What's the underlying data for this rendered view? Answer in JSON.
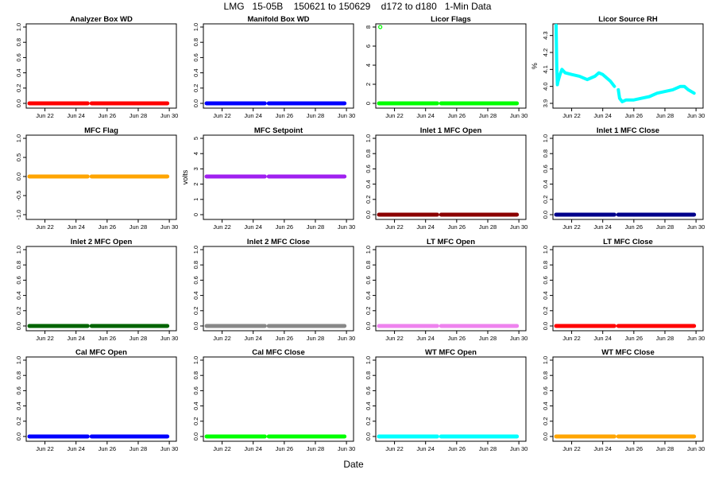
{
  "page": {
    "title": "LMG   15-05B    150621 to 150629    d172 to d180   1-Min Data",
    "xlabel": "Date"
  },
  "chart_data": [
    {
      "type": "scatter",
      "title": "Analyzer Box WD",
      "ylabel": "",
      "ylim": [
        0,
        1
      ],
      "yticks": [
        0,
        0.2,
        0.4,
        0.6,
        0.8,
        1.0
      ],
      "ytick_labels": [
        "0.0",
        "0.2",
        "0.4",
        "0.6",
        "0.8",
        "1.0"
      ],
      "xticks": [
        "Jun 22",
        "Jun 24",
        "Jun 26",
        "Jun 28",
        "Jun 30"
      ],
      "color": "#ff0000",
      "series": [
        {
          "x": [
            "2015-06-21",
            "2015-06-24 18:00"
          ],
          "y": [
            0,
            0
          ]
        },
        {
          "x": [
            "2015-06-25",
            "2015-06-29 21:00"
          ],
          "y": [
            0,
            0
          ]
        }
      ]
    },
    {
      "type": "scatter",
      "title": "Manifold Box WD",
      "ylabel": "",
      "ylim": [
        0,
        1
      ],
      "yticks": [
        0,
        0.2,
        0.4,
        0.6,
        0.8,
        1.0
      ],
      "ytick_labels": [
        "0.0",
        "0.2",
        "0.4",
        "0.6",
        "0.8",
        "1.0"
      ],
      "xticks": [
        "Jun 22",
        "Jun 24",
        "Jun 26",
        "Jun 28",
        "Jun 30"
      ],
      "color": "#0000ff",
      "series": [
        {
          "x": [
            "2015-06-21",
            "2015-06-24 18:00"
          ],
          "y": [
            0,
            0
          ]
        },
        {
          "x": [
            "2015-06-25",
            "2015-06-29 21:00"
          ],
          "y": [
            0,
            0
          ]
        }
      ]
    },
    {
      "type": "scatter",
      "title": "Licor Flags",
      "ylabel": "",
      "ylim": [
        0,
        8
      ],
      "yticks": [
        0,
        2,
        4,
        6,
        8
      ],
      "ytick_labels": [
        "0",
        "2",
        "4",
        "6",
        "8"
      ],
      "xticks": [
        "Jun 22",
        "Jun 24",
        "Jun 26",
        "Jun 28",
        "Jun 30"
      ],
      "color": "#00ff00",
      "outliers": [
        {
          "x": "2015-06-21 02:00",
          "y": 8
        }
      ],
      "series": [
        {
          "x": [
            "2015-06-21",
            "2015-06-24 18:00"
          ],
          "y": [
            0,
            0
          ]
        },
        {
          "x": [
            "2015-06-25",
            "2015-06-29 21:00"
          ],
          "y": [
            0,
            0
          ]
        }
      ]
    },
    {
      "type": "line",
      "title": "Licor Source RH",
      "ylabel": "%",
      "ylim": [
        3.9,
        4.35
      ],
      "yticks": [
        3.9,
        4.0,
        4.1,
        4.2,
        4.3
      ],
      "ytick_labels": [
        "3.9",
        "4.0",
        "4.1",
        "4.2",
        "4.3"
      ],
      "xticks": [
        "Jun 22",
        "Jun 24",
        "Jun 26",
        "Jun 28",
        "Jun 30"
      ],
      "color": "#00ffff",
      "series": [
        {
          "x": [
            "2015-06-21 00:00",
            "2015-06-21 01:00",
            "2015-06-21 02:00",
            "2015-06-21 03:00",
            "2015-06-21 06:00",
            "2015-06-21 09:00",
            "2015-06-21 14:00",
            "2015-06-22 00:00",
            "2015-06-22 12:00",
            "2015-06-23 00:00",
            "2015-06-23 12:00",
            "2015-06-23 18:00",
            "2015-06-24 00:00",
            "2015-06-24 06:00",
            "2015-06-24 12:00",
            "2015-06-24 18:00"
          ],
          "y": [
            4.36,
            4.12,
            4.01,
            4.03,
            4.07,
            4.1,
            4.08,
            4.07,
            4.06,
            4.04,
            4.06,
            4.08,
            4.07,
            4.05,
            4.03,
            4.0
          ]
        },
        {
          "x": [
            "2015-06-25 00:00",
            "2015-06-25 02:00",
            "2015-06-25 06:00",
            "2015-06-25 12:00",
            "2015-06-26 00:00",
            "2015-06-26 12:00",
            "2015-06-27 00:00",
            "2015-06-27 12:00",
            "2015-06-28 00:00",
            "2015-06-28 12:00",
            "2015-06-29 00:00",
            "2015-06-29 06:00",
            "2015-06-29 12:00",
            "2015-06-29 21:00"
          ],
          "y": [
            3.98,
            3.93,
            3.91,
            3.92,
            3.92,
            3.93,
            3.94,
            3.96,
            3.97,
            3.98,
            4.0,
            4.0,
            3.98,
            3.96
          ]
        }
      ]
    },
    {
      "type": "scatter",
      "title": "MFC Flag",
      "ylabel": "",
      "ylim": [
        -1,
        1
      ],
      "yticks": [
        -1,
        -0.5,
        0,
        0.5,
        1
      ],
      "ytick_labels": [
        "-1.0",
        "-0.5",
        "0.0",
        "0.5",
        "1.0"
      ],
      "xticks": [
        "Jun 22",
        "Jun 24",
        "Jun 26",
        "Jun 28",
        "Jun 30"
      ],
      "color": "#ffa500",
      "series": [
        {
          "x": [
            "2015-06-21",
            "2015-06-24 18:00"
          ],
          "y": [
            0,
            0
          ]
        },
        {
          "x": [
            "2015-06-25",
            "2015-06-29 21:00"
          ],
          "y": [
            0,
            0
          ]
        }
      ]
    },
    {
      "type": "scatter",
      "title": "MFC Setpoint",
      "ylabel": "volts",
      "ylim": [
        0,
        5
      ],
      "yticks": [
        0,
        1,
        2,
        3,
        4,
        5
      ],
      "ytick_labels": [
        "0",
        "1",
        "2",
        "3",
        "4",
        "5"
      ],
      "xticks": [
        "Jun 22",
        "Jun 24",
        "Jun 26",
        "Jun 28",
        "Jun 30"
      ],
      "color": "#a020f0",
      "series": [
        {
          "x": [
            "2015-06-21",
            "2015-06-24 18:00"
          ],
          "y": [
            2.5,
            2.5
          ]
        },
        {
          "x": [
            "2015-06-25",
            "2015-06-29 21:00"
          ],
          "y": [
            2.5,
            2.5
          ]
        }
      ]
    },
    {
      "type": "scatter",
      "title": "Inlet 1 MFC Open",
      "ylabel": "",
      "ylim": [
        0,
        1
      ],
      "yticks": [
        0,
        0.2,
        0.4,
        0.6,
        0.8,
        1.0
      ],
      "ytick_labels": [
        "0.0",
        "0.2",
        "0.4",
        "0.6",
        "0.8",
        "1.0"
      ],
      "xticks": [
        "Jun 22",
        "Jun 24",
        "Jun 26",
        "Jun 28",
        "Jun 30"
      ],
      "color": "#8b0000",
      "series": [
        {
          "x": [
            "2015-06-21",
            "2015-06-24 18:00"
          ],
          "y": [
            0,
            0
          ]
        },
        {
          "x": [
            "2015-06-25",
            "2015-06-29 21:00"
          ],
          "y": [
            0,
            0
          ]
        }
      ]
    },
    {
      "type": "scatter",
      "title": "Inlet 1 MFC Close",
      "ylabel": "",
      "ylim": [
        0,
        1
      ],
      "yticks": [
        0,
        0.2,
        0.4,
        0.6,
        0.8,
        1.0
      ],
      "ytick_labels": [
        "0.0",
        "0.2",
        "0.4",
        "0.6",
        "0.8",
        "1.0"
      ],
      "xticks": [
        "Jun 22",
        "Jun 24",
        "Jun 26",
        "Jun 28",
        "Jun 30"
      ],
      "color": "#00008b",
      "series": [
        {
          "x": [
            "2015-06-21",
            "2015-06-24 18:00"
          ],
          "y": [
            0,
            0
          ]
        },
        {
          "x": [
            "2015-06-25",
            "2015-06-29 21:00"
          ],
          "y": [
            0,
            0
          ]
        }
      ]
    },
    {
      "type": "scatter",
      "title": "Inlet 2 MFC Open",
      "ylabel": "",
      "ylim": [
        0,
        1
      ],
      "yticks": [
        0,
        0.2,
        0.4,
        0.6,
        0.8,
        1.0
      ],
      "ytick_labels": [
        "0.0",
        "0.2",
        "0.4",
        "0.6",
        "0.8",
        "1.0"
      ],
      "xticks": [
        "Jun 22",
        "Jun 24",
        "Jun 26",
        "Jun 28",
        "Jun 30"
      ],
      "color": "#006400",
      "series": [
        {
          "x": [
            "2015-06-21",
            "2015-06-24 18:00"
          ],
          "y": [
            0,
            0
          ]
        },
        {
          "x": [
            "2015-06-25",
            "2015-06-29 21:00"
          ],
          "y": [
            0,
            0
          ]
        }
      ]
    },
    {
      "type": "scatter",
      "title": "Inlet 2 MFC Close",
      "ylabel": "",
      "ylim": [
        0,
        1
      ],
      "yticks": [
        0,
        0.2,
        0.4,
        0.6,
        0.8,
        1.0
      ],
      "ytick_labels": [
        "0.0",
        "0.2",
        "0.4",
        "0.6",
        "0.8",
        "1.0"
      ],
      "xticks": [
        "Jun 22",
        "Jun 24",
        "Jun 26",
        "Jun 28",
        "Jun 30"
      ],
      "color": "#888888",
      "series": [
        {
          "x": [
            "2015-06-21",
            "2015-06-24 18:00"
          ],
          "y": [
            0,
            0
          ]
        },
        {
          "x": [
            "2015-06-25",
            "2015-06-29 21:00"
          ],
          "y": [
            0,
            0
          ]
        }
      ]
    },
    {
      "type": "scatter",
      "title": "LT MFC Open",
      "ylabel": "",
      "ylim": [
        0,
        1
      ],
      "yticks": [
        0,
        0.2,
        0.4,
        0.6,
        0.8,
        1.0
      ],
      "ytick_labels": [
        "0.0",
        "0.2",
        "0.4",
        "0.6",
        "0.8",
        "1.0"
      ],
      "xticks": [
        "Jun 22",
        "Jun 24",
        "Jun 26",
        "Jun 28",
        "Jun 30"
      ],
      "color": "#ee82ee",
      "series": [
        {
          "x": [
            "2015-06-21",
            "2015-06-24 18:00"
          ],
          "y": [
            0,
            0
          ]
        },
        {
          "x": [
            "2015-06-25",
            "2015-06-29 21:00"
          ],
          "y": [
            0,
            0
          ]
        }
      ]
    },
    {
      "type": "scatter",
      "title": "LT MFC Close",
      "ylabel": "",
      "ylim": [
        0,
        1
      ],
      "yticks": [
        0,
        0.2,
        0.4,
        0.6,
        0.8,
        1.0
      ],
      "ytick_labels": [
        "0.0",
        "0.2",
        "0.4",
        "0.6",
        "0.8",
        "1.0"
      ],
      "xticks": [
        "Jun 22",
        "Jun 24",
        "Jun 26",
        "Jun 28",
        "Jun 30"
      ],
      "color": "#ff0000",
      "series": [
        {
          "x": [
            "2015-06-21",
            "2015-06-24 18:00"
          ],
          "y": [
            0,
            0
          ]
        },
        {
          "x": [
            "2015-06-25",
            "2015-06-29 21:00"
          ],
          "y": [
            0,
            0
          ]
        }
      ]
    },
    {
      "type": "scatter",
      "title": "Cal MFC Open",
      "ylabel": "",
      "ylim": [
        0,
        1
      ],
      "yticks": [
        0,
        0.2,
        0.4,
        0.6,
        0.8,
        1.0
      ],
      "ytick_labels": [
        "0.0",
        "0.2",
        "0.4",
        "0.6",
        "0.8",
        "1.0"
      ],
      "xticks": [
        "Jun 22",
        "Jun 24",
        "Jun 26",
        "Jun 28",
        "Jun 30"
      ],
      "color": "#0000ff",
      "series": [
        {
          "x": [
            "2015-06-21",
            "2015-06-24 18:00"
          ],
          "y": [
            0,
            0
          ]
        },
        {
          "x": [
            "2015-06-25",
            "2015-06-29 21:00"
          ],
          "y": [
            0,
            0
          ]
        }
      ]
    },
    {
      "type": "scatter",
      "title": "Cal MFC Close",
      "ylabel": "",
      "ylim": [
        0,
        1
      ],
      "yticks": [
        0,
        0.2,
        0.4,
        0.6,
        0.8,
        1.0
      ],
      "ytick_labels": [
        "0.0",
        "0.2",
        "0.4",
        "0.6",
        "0.8",
        "1.0"
      ],
      "xticks": [
        "Jun 22",
        "Jun 24",
        "Jun 26",
        "Jun 28",
        "Jun 30"
      ],
      "color": "#00ff00",
      "series": [
        {
          "x": [
            "2015-06-21",
            "2015-06-24 18:00"
          ],
          "y": [
            0,
            0
          ]
        },
        {
          "x": [
            "2015-06-25",
            "2015-06-29 21:00"
          ],
          "y": [
            0,
            0
          ]
        }
      ]
    },
    {
      "type": "scatter",
      "title": "WT MFC Open",
      "ylabel": "",
      "ylim": [
        0,
        1
      ],
      "yticks": [
        0,
        0.2,
        0.4,
        0.6,
        0.8,
        1.0
      ],
      "ytick_labels": [
        "0.0",
        "0.2",
        "0.4",
        "0.6",
        "0.8",
        "1.0"
      ],
      "xticks": [
        "Jun 22",
        "Jun 24",
        "Jun 26",
        "Jun 28",
        "Jun 30"
      ],
      "color": "#00ffff",
      "series": [
        {
          "x": [
            "2015-06-21",
            "2015-06-24 18:00"
          ],
          "y": [
            0,
            0
          ]
        },
        {
          "x": [
            "2015-06-25",
            "2015-06-29 21:00"
          ],
          "y": [
            0,
            0
          ]
        }
      ]
    },
    {
      "type": "scatter",
      "title": "WT MFC Close",
      "ylabel": "",
      "ylim": [
        0,
        1
      ],
      "yticks": [
        0,
        0.2,
        0.4,
        0.6,
        0.8,
        1.0
      ],
      "ytick_labels": [
        "0.0",
        "0.2",
        "0.4",
        "0.6",
        "0.8",
        "1.0"
      ],
      "xticks": [
        "Jun 22",
        "Jun 24",
        "Jun 26",
        "Jun 28",
        "Jun 30"
      ],
      "color": "#ffa500",
      "series": [
        {
          "x": [
            "2015-06-21",
            "2015-06-24 18:00"
          ],
          "y": [
            0,
            0
          ]
        },
        {
          "x": [
            "2015-06-25",
            "2015-06-29 21:00"
          ],
          "y": [
            0,
            0
          ]
        }
      ]
    }
  ]
}
